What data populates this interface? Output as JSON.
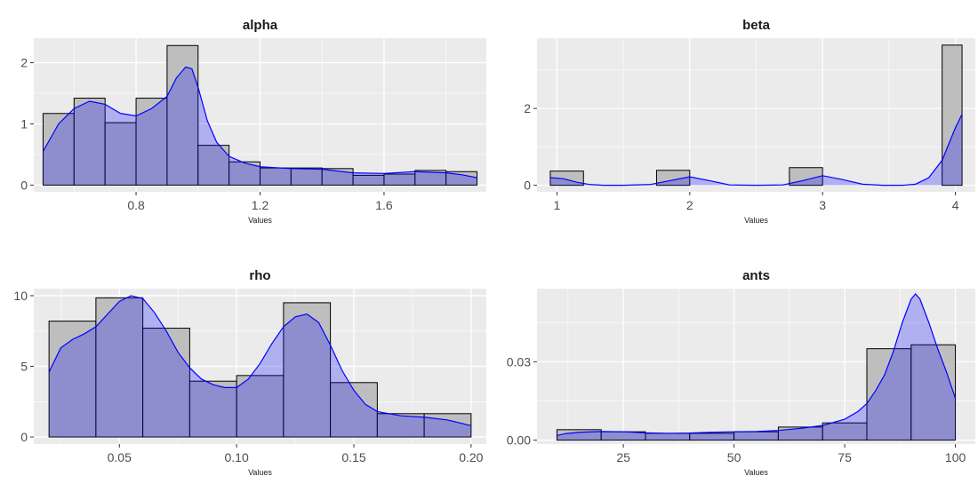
{
  "chart_data": [
    {
      "type": "bar",
      "title": "alpha",
      "xlabel": "Values",
      "ylabel": "",
      "xlim": [
        0.47,
        1.93
      ],
      "ylim": [
        -0.11,
        2.4
      ],
      "xticks": [
        "0.8",
        "1.2",
        "1.6"
      ],
      "xtick_values": [
        0.8,
        1.2,
        1.6
      ],
      "yticks": [
        "0",
        "1",
        "2"
      ],
      "ytick_values": [
        0,
        1,
        2
      ],
      "bins": [
        {
          "x0": 0.5,
          "x1": 0.6,
          "density": 1.17
        },
        {
          "x0": 0.6,
          "x1": 0.7,
          "density": 1.42
        },
        {
          "x0": 0.7,
          "x1": 0.8,
          "density": 1.02
        },
        {
          "x0": 0.8,
          "x1": 0.9,
          "density": 1.42
        },
        {
          "x0": 0.9,
          "x1": 1.0,
          "density": 2.28
        },
        {
          "x0": 1.0,
          "x1": 1.1,
          "density": 0.65
        },
        {
          "x0": 1.1,
          "x1": 1.2,
          "density": 0.38
        },
        {
          "x0": 1.2,
          "x1": 1.3,
          "density": 0.28
        },
        {
          "x0": 1.3,
          "x1": 1.4,
          "density": 0.28
        },
        {
          "x0": 1.4,
          "x1": 1.5,
          "density": 0.27
        },
        {
          "x0": 1.5,
          "x1": 1.6,
          "density": 0.16
        },
        {
          "x0": 1.6,
          "x1": 1.7,
          "density": 0.18
        },
        {
          "x0": 1.7,
          "x1": 1.8,
          "density": 0.24
        },
        {
          "x0": 1.8,
          "x1": 1.9,
          "density": 0.22
        }
      ],
      "density_curve": {
        "x": [
          0.5,
          0.55,
          0.6,
          0.65,
          0.7,
          0.75,
          0.8,
          0.85,
          0.9,
          0.93,
          0.96,
          0.98,
          1.0,
          1.03,
          1.06,
          1.1,
          1.15,
          1.2,
          1.3,
          1.4,
          1.5,
          1.6,
          1.7,
          1.8,
          1.85,
          1.9
        ],
        "y": [
          0.55,
          1.0,
          1.25,
          1.37,
          1.32,
          1.17,
          1.13,
          1.25,
          1.45,
          1.75,
          1.93,
          1.9,
          1.6,
          1.05,
          0.7,
          0.47,
          0.36,
          0.3,
          0.27,
          0.26,
          0.2,
          0.19,
          0.22,
          0.2,
          0.17,
          0.12
        ]
      }
    },
    {
      "type": "bar",
      "title": "beta",
      "xlabel": "Values",
      "ylabel": "",
      "xlim": [
        0.85,
        4.15
      ],
      "ylim": [
        -0.17,
        3.83
      ],
      "xticks": [
        "1",
        "2",
        "3",
        "4"
      ],
      "xtick_values": [
        1,
        2,
        3,
        4
      ],
      "yticks": [
        "0",
        "2"
      ],
      "ytick_values": [
        0,
        2
      ],
      "bins": [
        {
          "x0": 0.95,
          "x1": 1.2,
          "density": 0.37
        },
        {
          "x0": 1.2,
          "x1": 1.75,
          "density": 0.0
        },
        {
          "x0": 1.75,
          "x1": 2.0,
          "density": 0.39
        },
        {
          "x0": 2.0,
          "x1": 2.75,
          "density": 0.0
        },
        {
          "x0": 2.75,
          "x1": 3.0,
          "density": 0.46
        },
        {
          "x0": 3.0,
          "x1": 3.9,
          "density": 0.0
        },
        {
          "x0": 3.9,
          "x1": 4.05,
          "density": 3.65
        }
      ],
      "density_curve": {
        "x": [
          0.95,
          1.05,
          1.15,
          1.25,
          1.35,
          1.5,
          1.7,
          1.85,
          2.0,
          2.15,
          2.3,
          2.5,
          2.7,
          2.85,
          3.0,
          3.15,
          3.3,
          3.45,
          3.6,
          3.7,
          3.8,
          3.9,
          4.0,
          4.05
        ],
        "y": [
          0.2,
          0.17,
          0.08,
          0.02,
          0.0,
          0.0,
          0.02,
          0.12,
          0.22,
          0.12,
          0.01,
          0.0,
          0.01,
          0.12,
          0.25,
          0.15,
          0.03,
          0.0,
          0.0,
          0.03,
          0.2,
          0.65,
          1.5,
          1.85
        ]
      }
    },
    {
      "type": "bar",
      "title": "rho",
      "xlabel": "Values",
      "ylabel": "",
      "xlim": [
        0.0135,
        0.2065
      ],
      "ylim": [
        -0.5,
        10.5
      ],
      "xticks": [
        "0.05",
        "0.10",
        "0.15",
        "0.20"
      ],
      "xtick_values": [
        0.05,
        0.1,
        0.15,
        0.2
      ],
      "yticks": [
        "0",
        "5",
        "10"
      ],
      "ytick_values": [
        0,
        5,
        10
      ],
      "bins": [
        {
          "x0": 0.02,
          "x1": 0.04,
          "density": 8.2
        },
        {
          "x0": 0.04,
          "x1": 0.06,
          "density": 9.85
        },
        {
          "x0": 0.06,
          "x1": 0.08,
          "density": 7.7
        },
        {
          "x0": 0.08,
          "x1": 0.1,
          "density": 3.95
        },
        {
          "x0": 0.1,
          "x1": 0.12,
          "density": 4.35
        },
        {
          "x0": 0.12,
          "x1": 0.14,
          "density": 9.5
        },
        {
          "x0": 0.14,
          "x1": 0.16,
          "density": 3.85
        },
        {
          "x0": 0.16,
          "x1": 0.18,
          "density": 1.65
        },
        {
          "x0": 0.18,
          "x1": 0.2,
          "density": 1.65
        }
      ],
      "density_curve": {
        "x": [
          0.02,
          0.025,
          0.03,
          0.035,
          0.04,
          0.045,
          0.05,
          0.055,
          0.06,
          0.065,
          0.07,
          0.075,
          0.08,
          0.085,
          0.09,
          0.095,
          0.1,
          0.105,
          0.11,
          0.115,
          0.12,
          0.125,
          0.13,
          0.135,
          0.14,
          0.145,
          0.15,
          0.155,
          0.16,
          0.17,
          0.18,
          0.19,
          0.2
        ],
        "y": [
          4.6,
          6.3,
          6.9,
          7.3,
          7.8,
          8.7,
          9.6,
          10.0,
          9.8,
          8.8,
          7.5,
          6.0,
          4.9,
          4.1,
          3.7,
          3.5,
          3.5,
          4.1,
          5.2,
          6.6,
          7.8,
          8.5,
          8.7,
          8.1,
          6.5,
          4.7,
          3.3,
          2.3,
          1.8,
          1.5,
          1.4,
          1.2,
          0.8
        ]
      }
    },
    {
      "type": "bar",
      "title": "ants",
      "xlabel": "Values",
      "ylabel": "",
      "xlim": [
        5.5,
        104.5
      ],
      "ylim": [
        -0.0015,
        0.058
      ],
      "xticks": [
        "25",
        "50",
        "75",
        "100"
      ],
      "xtick_values": [
        25,
        50,
        75,
        100
      ],
      "yticks": [
        "0.00",
        "0.03"
      ],
      "ytick_values": [
        0.0,
        0.03
      ],
      "bins": [
        {
          "x0": 10,
          "x1": 20,
          "density": 0.004
        },
        {
          "x0": 20,
          "x1": 30,
          "density": 0.0032
        },
        {
          "x0": 30,
          "x1": 40,
          "density": 0.0026
        },
        {
          "x0": 40,
          "x1": 50,
          "density": 0.0026
        },
        {
          "x0": 50,
          "x1": 60,
          "density": 0.0032
        },
        {
          "x0": 60,
          "x1": 70,
          "density": 0.005
        },
        {
          "x0": 70,
          "x1": 80,
          "density": 0.0066
        },
        {
          "x0": 80,
          "x1": 90,
          "density": 0.035
        },
        {
          "x0": 90,
          "x1": 100,
          "density": 0.0365
        }
      ],
      "density_curve": {
        "x": [
          10,
          12,
          15,
          20,
          25,
          30,
          35,
          40,
          45,
          50,
          55,
          60,
          65,
          70,
          75,
          78,
          80,
          82,
          84,
          86,
          88,
          90,
          91,
          92,
          94,
          96,
          98,
          100
        ],
        "y": [
          0.0018,
          0.0025,
          0.003,
          0.0033,
          0.0032,
          0.0028,
          0.0026,
          0.0027,
          0.003,
          0.0032,
          0.0033,
          0.0037,
          0.0045,
          0.0056,
          0.008,
          0.011,
          0.014,
          0.019,
          0.025,
          0.034,
          0.045,
          0.054,
          0.056,
          0.054,
          0.045,
          0.035,
          0.026,
          0.016
        ]
      }
    }
  ]
}
